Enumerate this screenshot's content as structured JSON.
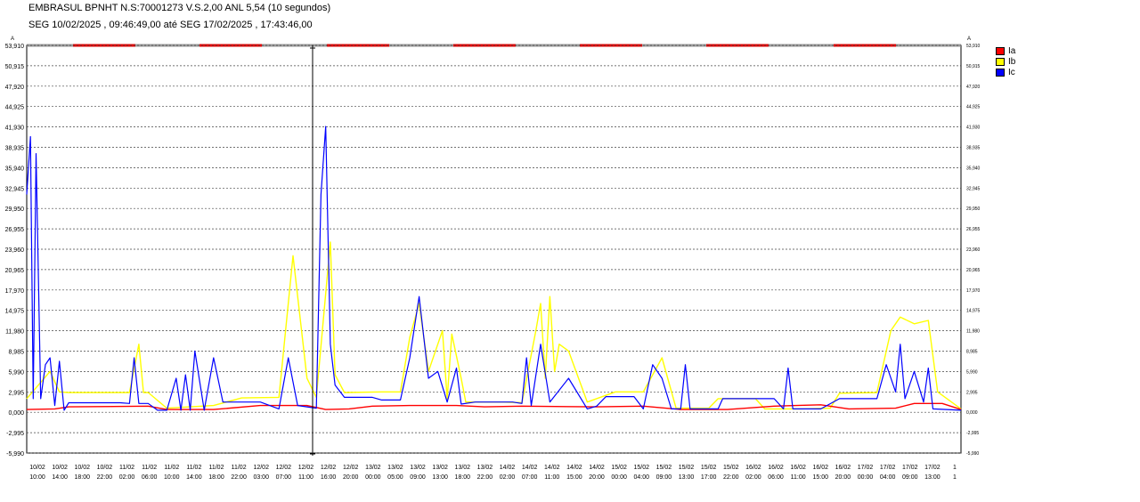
{
  "header": {
    "line1": "EMBRASUL BPNHT N.S:70001273  V.S.2,00 ANL 5,54 (10 segundos)",
    "line2": "SEG 10/02/2025 , 09:46:49,00 até SEG 17/02/2025 , 17:43:46,00"
  },
  "chart_data": {
    "type": "line",
    "unit_left": "A",
    "unit_right": "A",
    "y_ticks": [
      "53,910",
      "50,915",
      "47,920",
      "44,925",
      "41,930",
      "38,935",
      "35,940",
      "32,945",
      "29,950",
      "26,955",
      "23,960",
      "20,965",
      "17,970",
      "14,975",
      "11,980",
      "8,985",
      "5,990",
      "2,995",
      "0,000",
      "-2,995",
      "-5,990"
    ],
    "y_tick_values": [
      53.91,
      50.915,
      47.92,
      44.925,
      41.93,
      38.935,
      35.94,
      32.945,
      29.95,
      26.955,
      23.96,
      20.965,
      17.97,
      14.975,
      11.98,
      8.985,
      5.99,
      2.995,
      0,
      -2.995,
      -5.99
    ],
    "ylim": [
      -5.99,
      53.91
    ],
    "x_ticks": [
      {
        "d": "10/02",
        "t": "10:00"
      },
      {
        "d": "10/02",
        "t": "14:00"
      },
      {
        "d": "10/02",
        "t": "18:00"
      },
      {
        "d": "10/02",
        "t": "22:00"
      },
      {
        "d": "11/02",
        "t": "02:00"
      },
      {
        "d": "11/02",
        "t": "06:00"
      },
      {
        "d": "11/02",
        "t": "10:00"
      },
      {
        "d": "11/02",
        "t": "14:00"
      },
      {
        "d": "11/02",
        "t": "18:00"
      },
      {
        "d": "11/02",
        "t": "22:00"
      },
      {
        "d": "12/02",
        "t": "03:00"
      },
      {
        "d": "12/02",
        "t": "07:00"
      },
      {
        "d": "12/02",
        "t": "11:00"
      },
      {
        "d": "12/02",
        "t": "16:00"
      },
      {
        "d": "12/02",
        "t": "20:00"
      },
      {
        "d": "13/02",
        "t": "00:00"
      },
      {
        "d": "13/02",
        "t": "05:00"
      },
      {
        "d": "13/02",
        "t": "09:00"
      },
      {
        "d": "13/02",
        "t": "13:00"
      },
      {
        "d": "13/02",
        "t": "18:00"
      },
      {
        "d": "13/02",
        "t": "22:00"
      },
      {
        "d": "14/02",
        "t": "02:00"
      },
      {
        "d": "14/02",
        "t": "07:00"
      },
      {
        "d": "14/02",
        "t": "11:00"
      },
      {
        "d": "14/02",
        "t": "15:00"
      },
      {
        "d": "14/02",
        "t": "20:00"
      },
      {
        "d": "15/02",
        "t": "00:00"
      },
      {
        "d": "15/02",
        "t": "04:00"
      },
      {
        "d": "15/02",
        "t": "09:00"
      },
      {
        "d": "15/02",
        "t": "13:00"
      },
      {
        "d": "15/02",
        "t": "17:00"
      },
      {
        "d": "15/02",
        "t": "22:00"
      },
      {
        "d": "16/02",
        "t": "02:00"
      },
      {
        "d": "16/02",
        "t": "06:00"
      },
      {
        "d": "16/02",
        "t": "11:00"
      },
      {
        "d": "16/02",
        "t": "15:00"
      },
      {
        "d": "16/02",
        "t": "20:00"
      },
      {
        "d": "17/02",
        "t": "00:00"
      },
      {
        "d": "17/02",
        "t": "04:00"
      },
      {
        "d": "17/02",
        "t": "09:00"
      },
      {
        "d": "17/02",
        "t": "13:00"
      },
      {
        "d": "1",
        "t": "1"
      }
    ],
    "grid": true,
    "legend_position": "right",
    "series": [
      {
        "name": "Ia",
        "color": "#ff0000",
        "values": [
          [
            0,
            0.4
          ],
          [
            0.03,
            0.5
          ],
          [
            0.045,
            0.8
          ],
          [
            0.13,
            0.9
          ],
          [
            0.15,
            0.4
          ],
          [
            0.185,
            0.4
          ],
          [
            0.2,
            0.4
          ],
          [
            0.25,
            1.0
          ],
          [
            0.3,
            1.0
          ],
          [
            0.32,
            0.4
          ],
          [
            0.345,
            0.5
          ],
          [
            0.37,
            0.9
          ],
          [
            0.41,
            1.0
          ],
          [
            0.46,
            1.0
          ],
          [
            0.49,
            0.8
          ],
          [
            0.53,
            0.9
          ],
          [
            0.61,
            0.8
          ],
          [
            0.66,
            0.9
          ],
          [
            0.7,
            0.4
          ],
          [
            0.75,
            0.4
          ],
          [
            0.8,
            0.9
          ],
          [
            0.85,
            1.1
          ],
          [
            0.88,
            0.5
          ],
          [
            0.93,
            0.6
          ],
          [
            0.95,
            1.3
          ],
          [
            0.98,
            1.3
          ],
          [
            1.0,
            0.4
          ]
        ]
      },
      {
        "name": "Ib",
        "color": "#ffff00",
        "values": [
          [
            0,
            2.0
          ],
          [
            0.025,
            6.0
          ],
          [
            0.035,
            3.0
          ],
          [
            0.045,
            2.9
          ],
          [
            0.08,
            2.9
          ],
          [
            0.11,
            2.9
          ],
          [
            0.12,
            10.0
          ],
          [
            0.125,
            2.9
          ],
          [
            0.13,
            2.9
          ],
          [
            0.15,
            0.6
          ],
          [
            0.2,
            1.0
          ],
          [
            0.23,
            2.1
          ],
          [
            0.27,
            2.2
          ],
          [
            0.285,
            23.0
          ],
          [
            0.3,
            5.0
          ],
          [
            0.31,
            2.2
          ],
          [
            0.325,
            25.0
          ],
          [
            0.33,
            5.5
          ],
          [
            0.34,
            2.9
          ],
          [
            0.38,
            3.0
          ],
          [
            0.4,
            3.0
          ],
          [
            0.41,
            11.0
          ],
          [
            0.42,
            16.0
          ],
          [
            0.43,
            6.0
          ],
          [
            0.445,
            12.0
          ],
          [
            0.45,
            2.0
          ],
          [
            0.455,
            11.5
          ],
          [
            0.465,
            5.0
          ],
          [
            0.47,
            1.5
          ],
          [
            0.51,
            1.5
          ],
          [
            0.53,
            1.4
          ],
          [
            0.545,
            12.0
          ],
          [
            0.55,
            16.0
          ],
          [
            0.555,
            5.0
          ],
          [
            0.56,
            17.0
          ],
          [
            0.565,
            6.0
          ],
          [
            0.57,
            10.0
          ],
          [
            0.58,
            9.0
          ],
          [
            0.6,
            1.5
          ],
          [
            0.63,
            3.0
          ],
          [
            0.66,
            3.0
          ],
          [
            0.68,
            8.0
          ],
          [
            0.695,
            0.6
          ],
          [
            0.73,
            0.6
          ],
          [
            0.74,
            2.0
          ],
          [
            0.78,
            2.0
          ],
          [
            0.79,
            0.5
          ],
          [
            0.83,
            0.5
          ],
          [
            0.86,
            0.6
          ],
          [
            0.87,
            2.8
          ],
          [
            0.91,
            2.9
          ],
          [
            0.925,
            12.0
          ],
          [
            0.935,
            14.0
          ],
          [
            0.95,
            13.0
          ],
          [
            0.965,
            13.5
          ],
          [
            0.975,
            3.0
          ],
          [
            1.0,
            0.5
          ]
        ]
      },
      {
        "name": "Ic",
        "color": "#0000ff",
        "values": [
          [
            0,
            32.0
          ],
          [
            0.004,
            40.5
          ],
          [
            0.007,
            2.0
          ],
          [
            0.01,
            38.0
          ],
          [
            0.015,
            2.0
          ],
          [
            0.02,
            7.0
          ],
          [
            0.025,
            8.0
          ],
          [
            0.03,
            1.0
          ],
          [
            0.035,
            7.5
          ],
          [
            0.04,
            0.3
          ],
          [
            0.045,
            1.4
          ],
          [
            0.1,
            1.4
          ],
          [
            0.11,
            1.3
          ],
          [
            0.115,
            8.0
          ],
          [
            0.12,
            1.3
          ],
          [
            0.13,
            1.3
          ],
          [
            0.14,
            0.3
          ],
          [
            0.15,
            0.3
          ],
          [
            0.16,
            5.0
          ],
          [
            0.165,
            0.3
          ],
          [
            0.17,
            5.5
          ],
          [
            0.175,
            0.3
          ],
          [
            0.18,
            9.0
          ],
          [
            0.19,
            0.3
          ],
          [
            0.2,
            8.0
          ],
          [
            0.21,
            1.5
          ],
          [
            0.25,
            1.5
          ],
          [
            0.27,
            0.5
          ],
          [
            0.28,
            8.0
          ],
          [
            0.29,
            1.0
          ],
          [
            0.31,
            0.6
          ],
          [
            0.315,
            32.0
          ],
          [
            0.32,
            42.0
          ],
          [
            0.325,
            10.0
          ],
          [
            0.33,
            4.0
          ],
          [
            0.34,
            2.2
          ],
          [
            0.37,
            2.2
          ],
          [
            0.38,
            1.8
          ],
          [
            0.4,
            1.8
          ],
          [
            0.41,
            8.0
          ],
          [
            0.42,
            17.0
          ],
          [
            0.43,
            5.0
          ],
          [
            0.44,
            6.0
          ],
          [
            0.45,
            1.5
          ],
          [
            0.46,
            6.5
          ],
          [
            0.465,
            1.2
          ],
          [
            0.48,
            1.5
          ],
          [
            0.52,
            1.5
          ],
          [
            0.53,
            1.3
          ],
          [
            0.535,
            8.0
          ],
          [
            0.54,
            1.0
          ],
          [
            0.55,
            10.0
          ],
          [
            0.56,
            1.5
          ],
          [
            0.58,
            5.0
          ],
          [
            0.6,
            0.5
          ],
          [
            0.61,
            0.9
          ],
          [
            0.62,
            2.3
          ],
          [
            0.65,
            2.3
          ],
          [
            0.66,
            0.5
          ],
          [
            0.67,
            7.0
          ],
          [
            0.68,
            5.0
          ],
          [
            0.69,
            0.5
          ],
          [
            0.7,
            0.5
          ],
          [
            0.705,
            7.0
          ],
          [
            0.71,
            0.5
          ],
          [
            0.74,
            0.5
          ],
          [
            0.745,
            2.0
          ],
          [
            0.8,
            2.0
          ],
          [
            0.81,
            0.5
          ],
          [
            0.815,
            6.5
          ],
          [
            0.82,
            0.5
          ],
          [
            0.85,
            0.5
          ],
          [
            0.87,
            2.0
          ],
          [
            0.91,
            2.0
          ],
          [
            0.92,
            7.0
          ],
          [
            0.93,
            3.0
          ],
          [
            0.935,
            10.0
          ],
          [
            0.94,
            2.0
          ],
          [
            0.95,
            6.0
          ],
          [
            0.96,
            1.5
          ],
          [
            0.965,
            6.5
          ],
          [
            0.97,
            0.5
          ],
          [
            1.0,
            0.3
          ]
        ]
      }
    ],
    "marker_label": "",
    "cursor_position_fraction": 0.306
  },
  "legend": {
    "items": [
      {
        "label": "Ia",
        "color": "#ff0000"
      },
      {
        "label": "Ib",
        "color": "#ffff00"
      },
      {
        "label": "Ic",
        "color": "#0000ff"
      }
    ]
  }
}
